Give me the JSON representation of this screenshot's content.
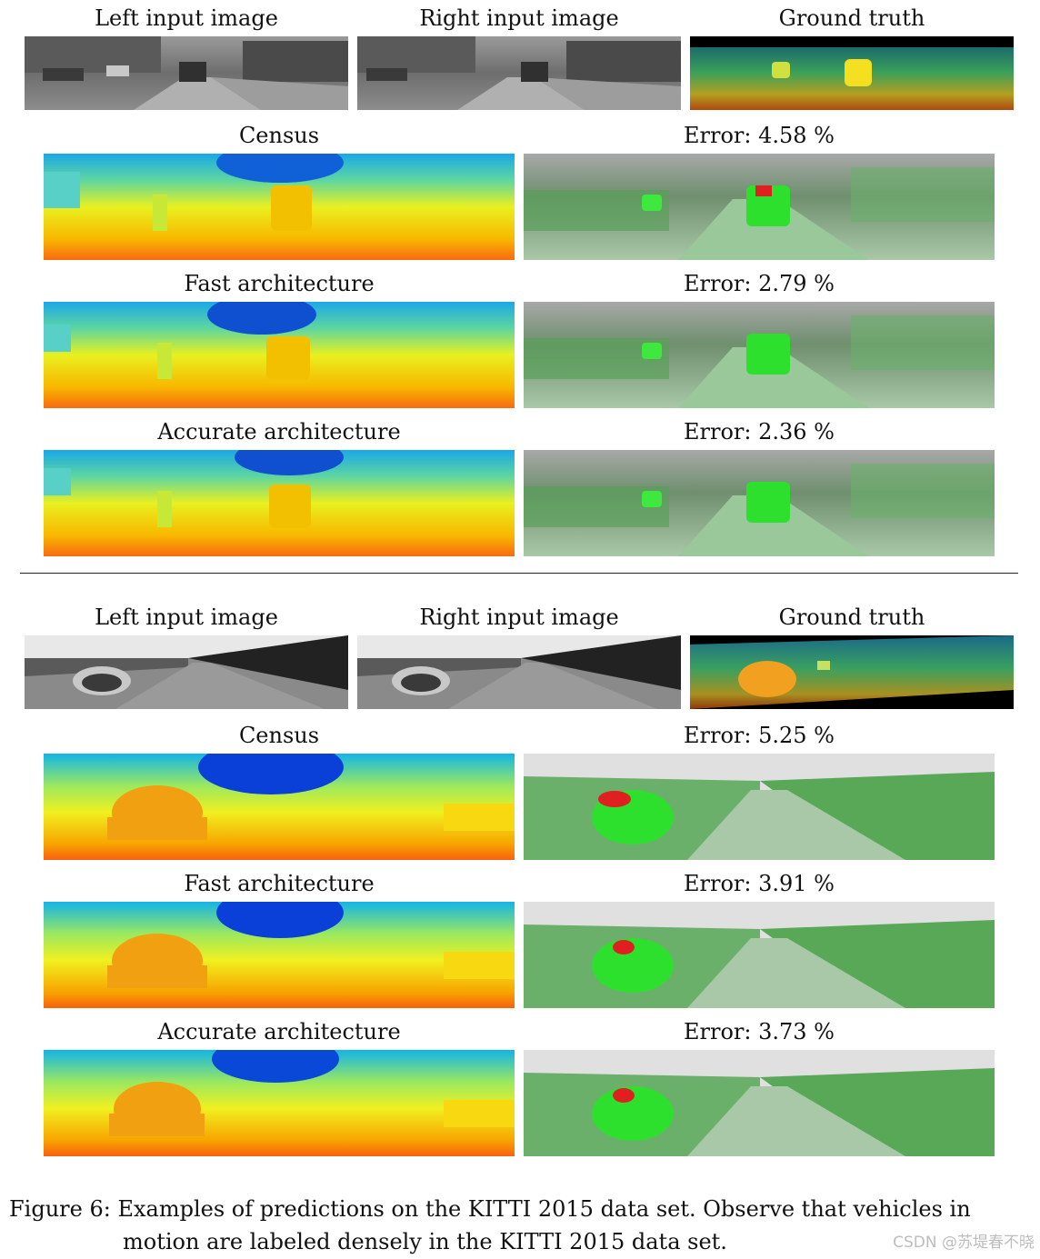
{
  "block1": {
    "left_input_label": "Left input image",
    "right_input_label": "Right input image",
    "ground_truth_label": "Ground truth",
    "rows": [
      {
        "method": "Census",
        "error": "Error:  4.58 %"
      },
      {
        "method": "Fast architecture",
        "error": "Error:  2.79 %"
      },
      {
        "method": "Accurate architecture",
        "error": "Error:  2.36 %"
      }
    ]
  },
  "block2": {
    "left_input_label": "Left input image",
    "right_input_label": "Right input image",
    "ground_truth_label": "Ground truth",
    "rows": [
      {
        "method": "Census",
        "error": "Error:  5.25 %"
      },
      {
        "method": "Fast architecture",
        "error": "Error:  3.91 %"
      },
      {
        "method": "Accurate architecture",
        "error": "Error:  3.73 %"
      }
    ]
  },
  "caption": {
    "prefix": "Figure 6:",
    "line1": "Examples of predictions on the KITTI 2015 data set.  Observe that vehicles in",
    "line2": "motion are labeled densely in the KITTI 2015 data set."
  },
  "watermark": "CSDN @苏堤春不晓"
}
